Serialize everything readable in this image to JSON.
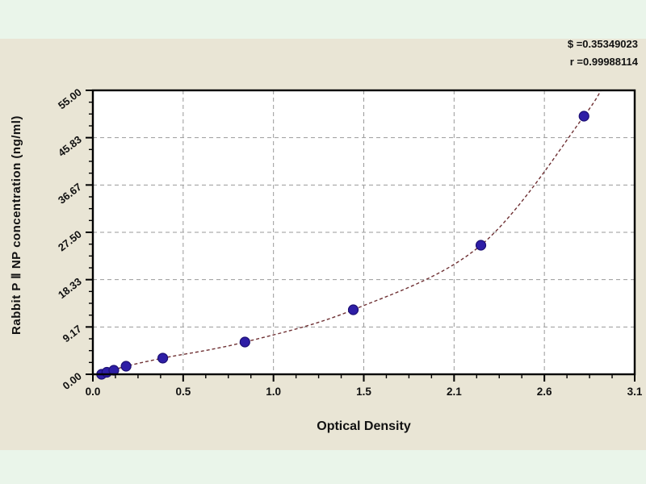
{
  "colors": {
    "outer_background": "#eaf5ea",
    "panel_background": "#e9e5d5",
    "plot_background": "#ffffff",
    "axis_color": "#000000",
    "grid_color": "#999999",
    "curve_color": "#6f3134",
    "point_fill": "#2e1ea6",
    "point_stroke": "#1c0f73",
    "text_color": "#111111"
  },
  "stats": {
    "s_line": "$ =0.35349023",
    "r_line": "r =0.99988114"
  },
  "axes": {
    "x_title": "Optical Density",
    "y_title": "Rabbit P Ⅱ NP concentration (ng/ml)"
  },
  "chart_data": {
    "type": "scatter",
    "title": "",
    "xlabel": "Optical Density",
    "ylabel": "Rabbit P Ⅱ NP concentration (ng/ml)",
    "xlim": [
      0,
      3.1
    ],
    "ylim": [
      0,
      55
    ],
    "x_tick_labels": [
      "0.0",
      "0.5",
      "1.0",
      "1.5",
      "2.1",
      "2.6",
      "3.1"
    ],
    "y_tick_labels": [
      "0.00",
      "9.17",
      "18.33",
      "27.50",
      "36.67",
      "45.83",
      "55.00"
    ],
    "minor_ticks_between_majors": 3,
    "grid": "dashed, at every major tick, both directions",
    "legend": "none",
    "annotations": [
      "$ =0.35349023",
      "r =0.99988114"
    ],
    "series": [
      {
        "name": "standard-points",
        "points": [
          {
            "x": 0.05,
            "y": 0.0
          },
          {
            "x": 0.08,
            "y": 0.39
          },
          {
            "x": 0.12,
            "y": 0.78
          },
          {
            "x": 0.19,
            "y": 1.56
          },
          {
            "x": 0.4,
            "y": 3.13
          },
          {
            "x": 0.87,
            "y": 6.25
          },
          {
            "x": 1.49,
            "y": 12.5
          },
          {
            "x": 2.22,
            "y": 25.0
          },
          {
            "x": 2.81,
            "y": 50.0
          }
        ]
      }
    ],
    "fit_curve": {
      "style": "dashed",
      "start_anchor": {
        "x": 0.02,
        "y": 0.0
      },
      "end_anchor": {
        "x": 2.93,
        "y": 57.0
      }
    }
  }
}
